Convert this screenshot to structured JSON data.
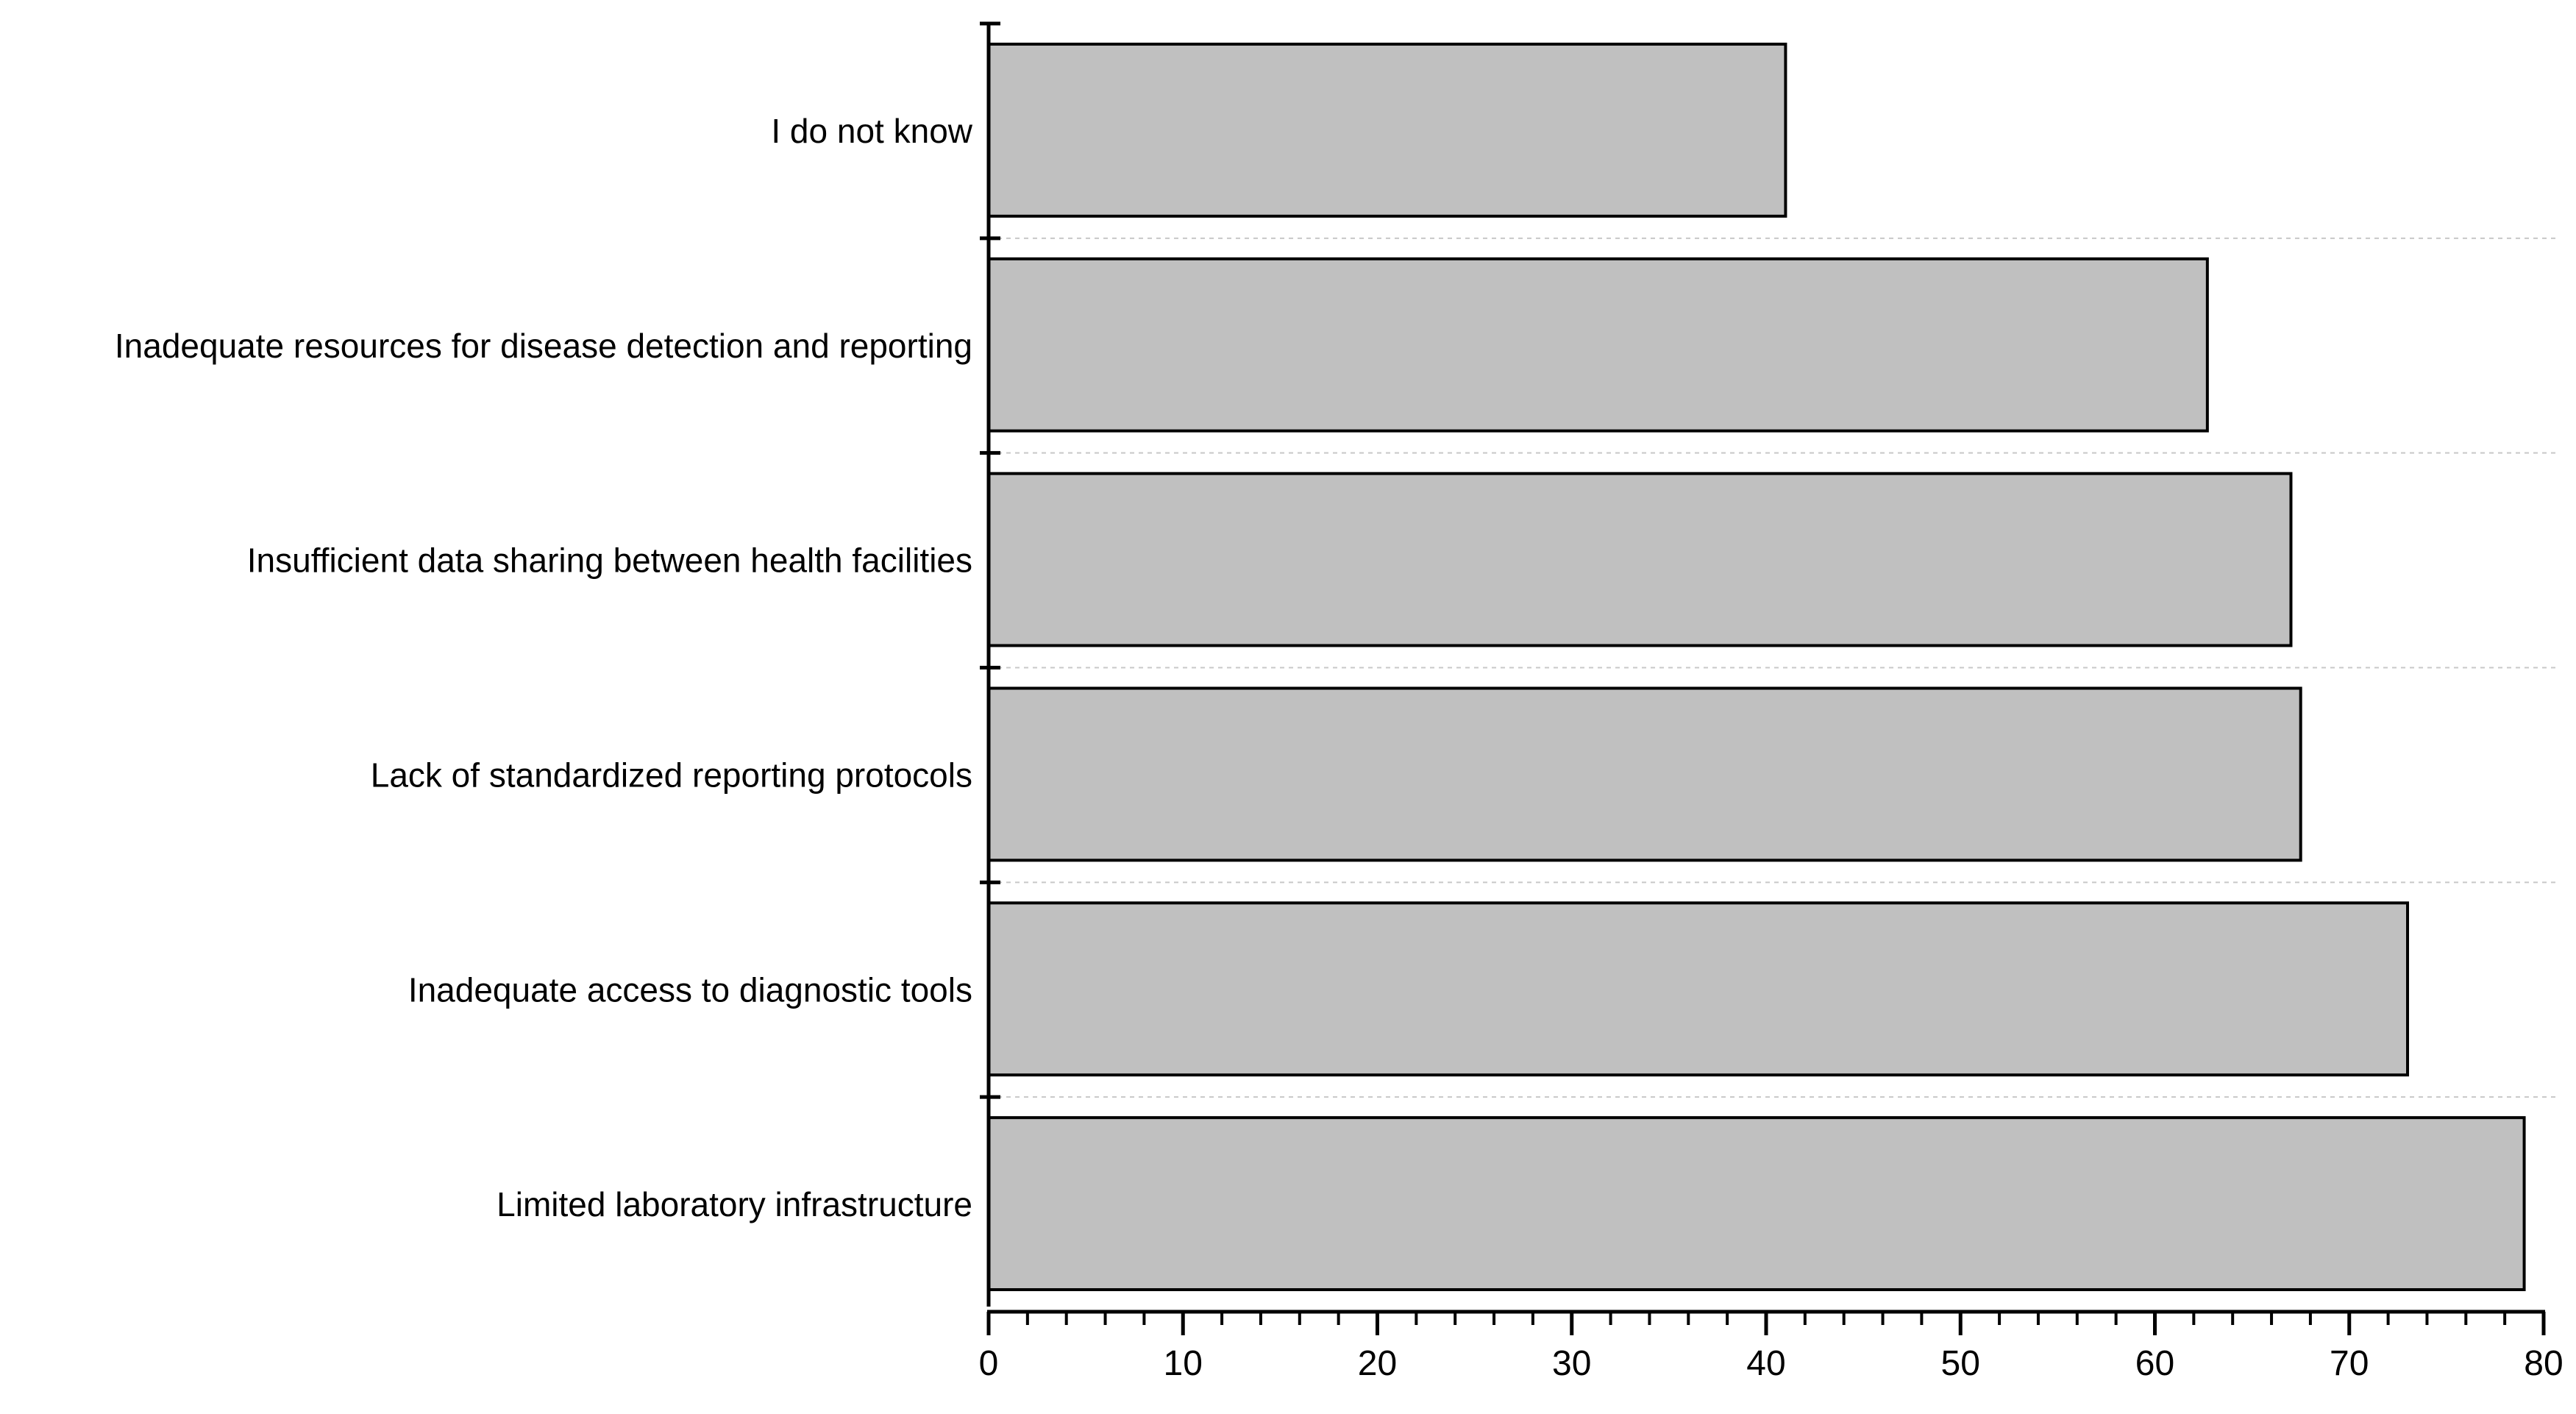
{
  "chart_data": {
    "type": "bar",
    "orientation": "horizontal",
    "categories": [
      "I do not know",
      "Inadequate resources for disease detection and reporting",
      "Insufficient data sharing between health facilities",
      "Lack of standardized reporting protocols",
      "Inadequate access to diagnostic tools",
      "Limited laboratory infrastructure"
    ],
    "values": [
      41,
      62.7,
      67,
      67.5,
      73,
      79
    ],
    "xlim": [
      0,
      80
    ],
    "x_ticks": [
      0,
      10,
      20,
      30,
      40,
      50,
      60,
      70,
      80
    ],
    "x_tick_labels": [
      "0",
      "10",
      "20",
      "30",
      "40",
      "50",
      "60",
      "70",
      "80"
    ],
    "x_minor_step": 2,
    "title": "",
    "xlabel": "",
    "ylabel": "",
    "bar_color": "#c0c0c0",
    "bar_edge_color": "#000000",
    "separator_color": "#c8c8c8",
    "grid": false,
    "legend": "none"
  }
}
